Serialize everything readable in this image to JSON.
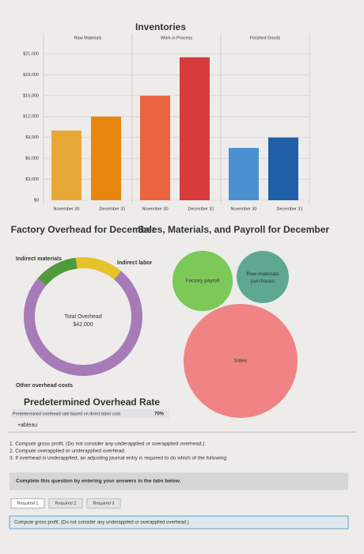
{
  "chart_data": [
    {
      "type": "bar",
      "title": "Inventories",
      "facets": [
        "Raw Materials",
        "Work in Process",
        "Finished Goods"
      ],
      "categories": [
        "November 30",
        "December 31"
      ],
      "series": [
        {
          "name": "Raw Materials",
          "colors": [
            "#e8a838",
            "#e8870e"
          ],
          "values": [
            10000,
            12000
          ]
        },
        {
          "name": "Work in Process",
          "colors": [
            "#e9643f",
            "#d83b3b"
          ],
          "values": [
            15000,
            20500
          ]
        },
        {
          "name": "Finished Goods",
          "colors": [
            "#4b90d1",
            "#1f5fa8"
          ],
          "values": [
            7500,
            9000
          ]
        }
      ],
      "ylim": [
        0,
        21000
      ],
      "yticks": [
        {
          "value": 0,
          "label": "$0"
        },
        {
          "value": 3000,
          "label": "$3,000"
        },
        {
          "value": 6000,
          "label": "$6,000"
        },
        {
          "value": 9000,
          "label": "$9,000"
        },
        {
          "value": 12000,
          "label": "$12,000"
        },
        {
          "value": 15000,
          "label": "$15,000"
        },
        {
          "value": 18000,
          "label": "$18,000"
        },
        {
          "value": 21000,
          "label": "$21,000"
        }
      ],
      "grid": true
    },
    {
      "type": "donut",
      "title": "Factory Overhead for December",
      "categories": [
        "Indirect materials",
        "Indirect labor",
        "Other overhead costs"
      ],
      "values": [
        5000,
        5500,
        31500
      ],
      "colors": [
        "#4f9a3a",
        "#e4c22a",
        "#a77bb8"
      ],
      "center_title": "Total Overhead",
      "center_value": "$42,000"
    },
    {
      "type": "bubble",
      "title": "Sales, Materials, and Payroll for December",
      "categories": [
        "Factory payroll",
        "Raw materials purchases",
        "Sales"
      ],
      "values": [
        14000,
        10500,
        50000
      ],
      "colors": [
        "#7cc95a",
        "#5ea892",
        "#f08383"
      ]
    }
  ],
  "rate": {
    "title": "Predetermined Overhead Rate",
    "label": "Predetermined overhead rate based on direct labor cost",
    "value": "70%"
  },
  "logo": "+ableau",
  "questions": [
    "1. Compute gross profit. (Do not consider any underapplied or overapplied overhead.)",
    "2. Compute overapplied or underapplied overhead.",
    "3. If overhead is underapplied, an adjusting journal entry is required to do which of the following:"
  ],
  "banner": "Complete this question by entering your answers in the tabs below.",
  "tabs": [
    "Required 1",
    "Required 2",
    "Required 3"
  ],
  "prompt": "Compute gross profit. (Do not consider any underapplied or overapplied overhead.)"
}
